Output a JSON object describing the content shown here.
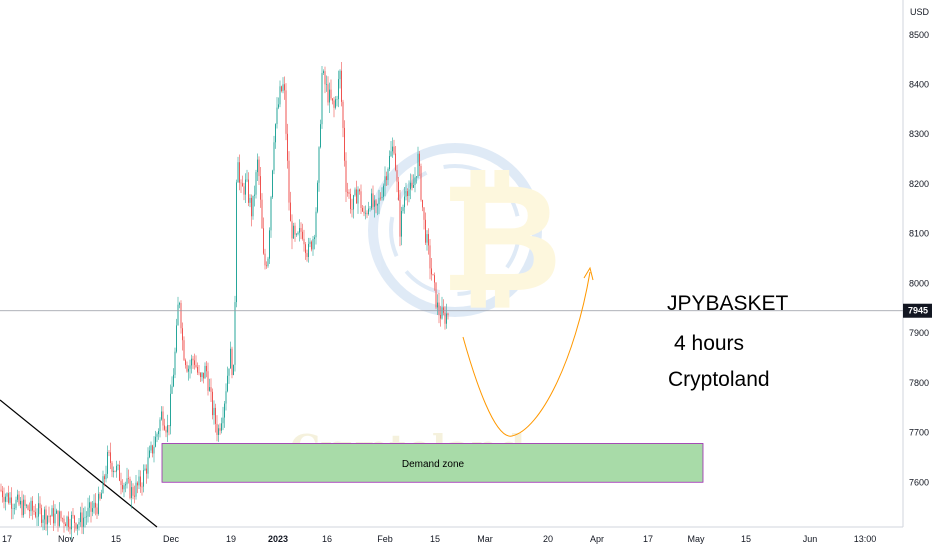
{
  "chart_data": {
    "type": "candlestick",
    "symbol": "JPYBASKET",
    "currency": "USD",
    "last_price": "7945",
    "y_ticks": [
      7600,
      7700,
      7800,
      7900,
      8000,
      8100,
      8200,
      8300,
      8400,
      8500
    ],
    "ylim": [
      7510,
      8570
    ],
    "x_ticks": [
      "17",
      "Nov",
      "15",
      "Dec",
      "19",
      "2023",
      "16",
      "Feb",
      "15",
      "Mar",
      "20",
      "Apr",
      "17",
      "May",
      "15",
      "Jun",
      "13:00"
    ],
    "demand_zone": {
      "label": "Demand zone",
      "low": 7600,
      "high": 7678
    },
    "annotations": [
      "JPYBASKET",
      "4 hours",
      "Cryptoland"
    ],
    "watermark": "Cryptoland",
    "colors": {
      "up": "#26a69a",
      "down": "#ef5350",
      "zone": "#a8dba8",
      "zone_border": "#9c27b0",
      "projection": "#ff9800",
      "badge": "#131722"
    },
    "price_path": [
      [
        0,
        7585
      ],
      [
        8,
        7570
      ],
      [
        20,
        7552
      ],
      [
        40,
        7538
      ],
      [
        60,
        7528
      ],
      [
        80,
        7522
      ],
      [
        100,
        7560
      ],
      [
        108,
        7650
      ],
      [
        116,
        7625
      ],
      [
        124,
        7600
      ],
      [
        132,
        7580
      ],
      [
        140,
        7595
      ],
      [
        148,
        7640
      ],
      [
        156,
        7690
      ],
      [
        162,
        7740
      ],
      [
        168,
        7705
      ],
      [
        172,
        7790
      ],
      [
        176,
        7880
      ],
      [
        179,
        7985
      ],
      [
        183,
        7870
      ],
      [
        188,
        7830
      ],
      [
        194,
        7850
      ],
      [
        200,
        7800
      ],
      [
        206,
        7830
      ],
      [
        212,
        7750
      ],
      [
        218,
        7700
      ],
      [
        224,
        7760
      ],
      [
        230,
        7860
      ],
      [
        234,
        7810
      ],
      [
        237,
        8300
      ],
      [
        240,
        8180
      ],
      [
        246,
        8200
      ],
      [
        252,
        8140
      ],
      [
        258,
        8250
      ],
      [
        264,
        8030
      ],
      [
        268,
        8060
      ],
      [
        274,
        8300
      ],
      [
        280,
        8380
      ],
      [
        284,
        8400
      ],
      [
        290,
        8120
      ],
      [
        296,
        8080
      ],
      [
        302,
        8110
      ],
      [
        308,
        8060
      ],
      [
        314,
        8100
      ],
      [
        318,
        8200
      ],
      [
        322,
        8420
      ],
      [
        328,
        8380
      ],
      [
        334,
        8350
      ],
      [
        340,
        8420
      ],
      [
        346,
        8200
      ],
      [
        352,
        8150
      ],
      [
        358,
        8190
      ],
      [
        364,
        8130
      ],
      [
        370,
        8170
      ],
      [
        376,
        8140
      ],
      [
        382,
        8190
      ],
      [
        388,
        8240
      ],
      [
        394,
        8280
      ],
      [
        400,
        8110
      ],
      [
        406,
        8200
      ],
      [
        412,
        8180
      ],
      [
        418,
        8250
      ],
      [
        424,
        8120
      ],
      [
        430,
        8040
      ],
      [
        434,
        7990
      ],
      [
        438,
        7945
      ],
      [
        444,
        7930
      ],
      [
        449,
        7945
      ]
    ]
  }
}
